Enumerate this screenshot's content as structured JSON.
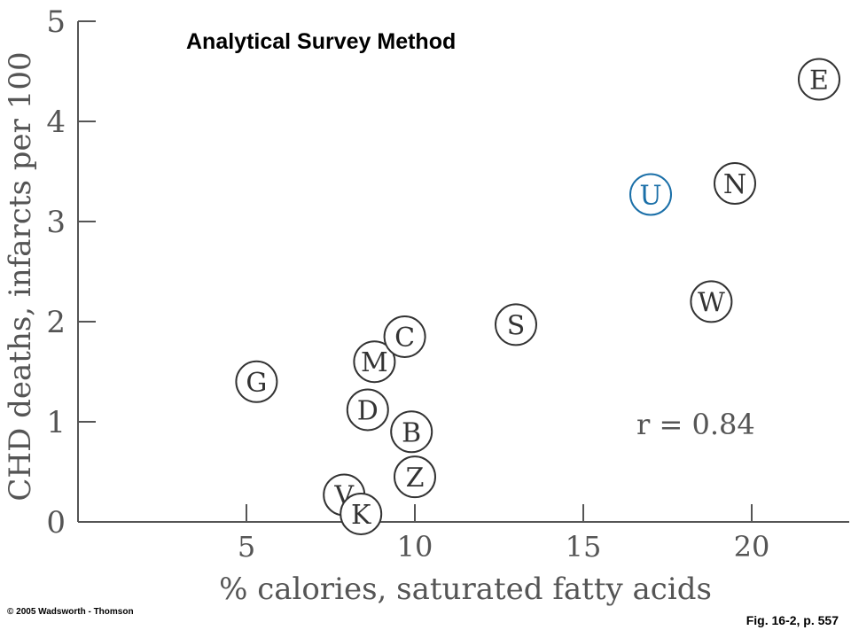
{
  "chart_data": {
    "type": "scatter",
    "title": "Analytical Survey Method",
    "xlabel": "% calories, saturated fatty acids",
    "ylabel": "CHD deaths, infarcts per 100",
    "xlim": [
      0,
      23
    ],
    "ylim": [
      0,
      5
    ],
    "xticks": [
      5,
      10,
      15,
      20
    ],
    "yticks": [
      0,
      1,
      2,
      3,
      4,
      5
    ],
    "grid": false,
    "annotation": "r = 0.84",
    "points": [
      {
        "label": "G",
        "x": 5.3,
        "y": 1.4,
        "color": "#333333"
      },
      {
        "label": "M",
        "x": 8.8,
        "y": 1.6,
        "color": "#333333"
      },
      {
        "label": "C",
        "x": 9.7,
        "y": 1.85,
        "color": "#333333"
      },
      {
        "label": "D",
        "x": 8.6,
        "y": 1.12,
        "color": "#333333"
      },
      {
        "label": "B",
        "x": 9.9,
        "y": 0.9,
        "color": "#333333"
      },
      {
        "label": "Z",
        "x": 10.0,
        "y": 0.45,
        "color": "#333333"
      },
      {
        "label": "V",
        "x": 7.9,
        "y": 0.27,
        "color": "#333333"
      },
      {
        "label": "K",
        "x": 8.4,
        "y": 0.08,
        "color": "#333333"
      },
      {
        "label": "S",
        "x": 13.0,
        "y": 1.97,
        "color": "#333333"
      },
      {
        "label": "W",
        "x": 18.8,
        "y": 2.2,
        "color": "#333333"
      },
      {
        "label": "U",
        "x": 17.0,
        "y": 3.27,
        "color": "#1a6fa8"
      },
      {
        "label": "N",
        "x": 19.5,
        "y": 3.38,
        "color": "#333333"
      },
      {
        "label": "E",
        "x": 22.0,
        "y": 4.42,
        "color": "#333333"
      }
    ]
  },
  "copyright": "© 2005 Wadsworth - Thomson",
  "caption": "Fig. 16-2, p. 557"
}
